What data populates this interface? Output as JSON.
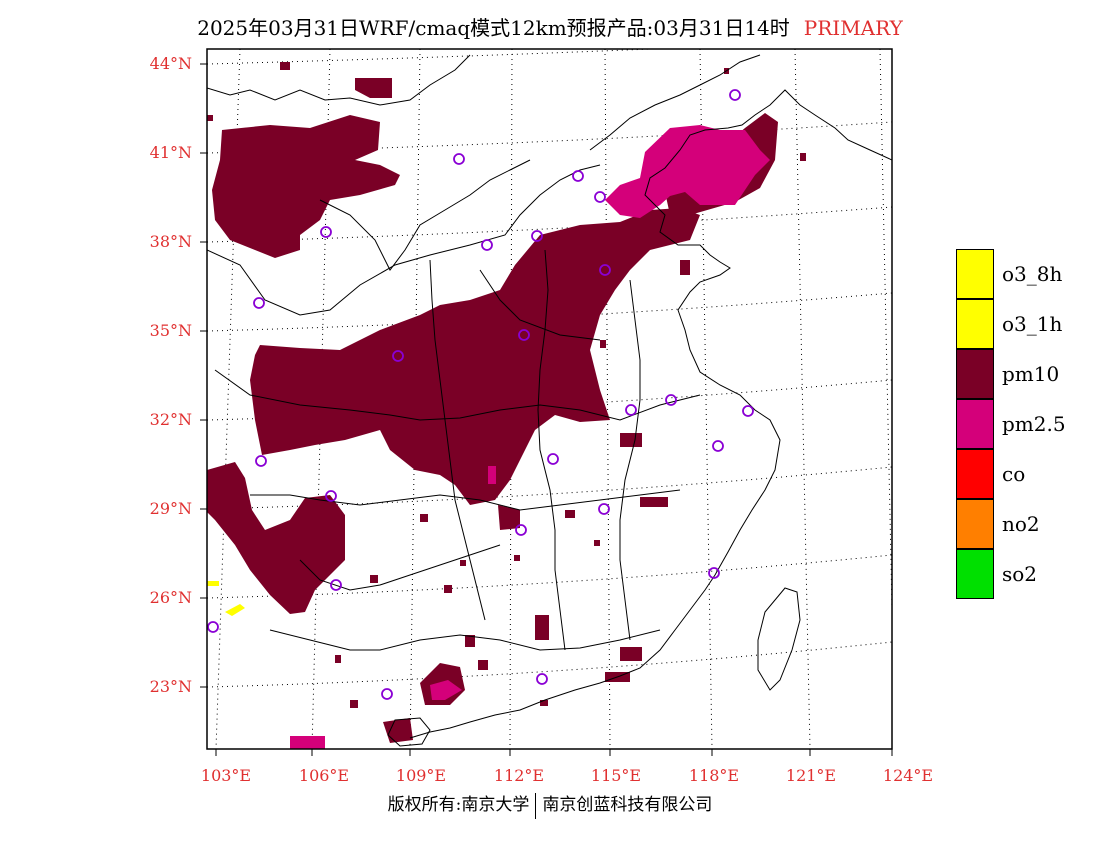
{
  "title": {
    "text": "2025年03月31日WRF/cmaq模式12km预报产品:03月31日14时",
    "tag": "PRIMARY"
  },
  "axes": {
    "lat_labels": [
      "44°N",
      "41°N",
      "38°N",
      "35°N",
      "32°N",
      "29°N",
      "26°N",
      "23°N"
    ],
    "lon_labels": [
      "103°E",
      "106°E",
      "109°E",
      "112°E",
      "115°E",
      "118°E",
      "121°E",
      "124°E"
    ]
  },
  "legend": [
    {
      "label": "o3_8h",
      "color": "#ffff00"
    },
    {
      "label": "o3_1h",
      "color": "#ffff00"
    },
    {
      "label": "pm10",
      "color": "#7a0026"
    },
    {
      "label": "pm2.5",
      "color": "#d4007a"
    },
    {
      "label": "co",
      "color": "#ff0000"
    },
    {
      "label": "no2",
      "color": "#ff7f00"
    },
    {
      "label": "so2",
      "color": "#00e000"
    }
  ],
  "copyright": {
    "left": "版权所有:南京大学",
    "right": "南京创蓝科技有限公司"
  },
  "colors": {
    "label_red": "#e03030",
    "pm10": "#7a0026",
    "pm25": "#d4007a",
    "station": "#8a00d4"
  }
}
